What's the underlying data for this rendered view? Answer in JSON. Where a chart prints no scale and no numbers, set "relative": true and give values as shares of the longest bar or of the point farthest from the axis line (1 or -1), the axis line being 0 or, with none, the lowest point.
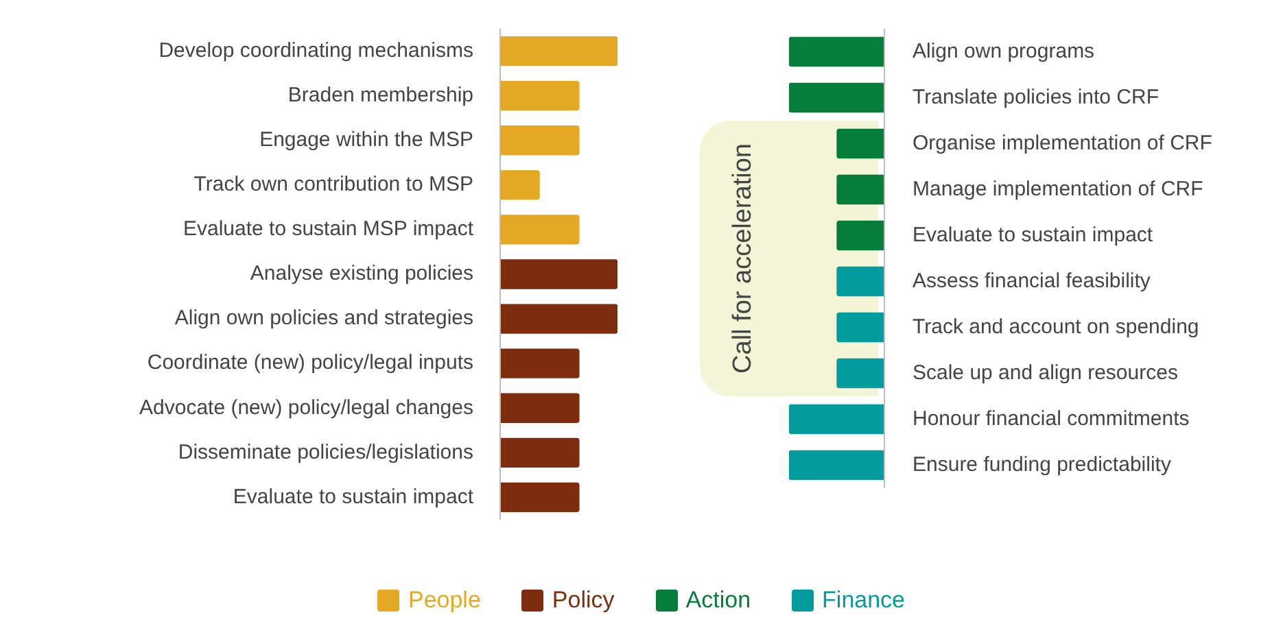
{
  "chart_data": [
    {
      "type": "bar",
      "orientation": "horizontal",
      "relative": true,
      "tick_labels": "y",
      "legend": "bottom",
      "categories": [
        "Develop coordinating mechanisms",
        "Braden membership",
        "Engage within the MSP",
        "Track own contribution to MSP",
        "Evaluate to sustain MSP impact",
        "Analyse existing policies",
        "Align own policies and strategies",
        "Coordinate (new) policy/legal inputs",
        "Advocate (new) policy/legal changes",
        "Disseminate policies/legislations",
        "Evaluate to sustain impact"
      ],
      "series": [
        {
          "name": "People",
          "color": "#e5a823",
          "values": [
            1,
            0.67,
            0.67,
            0.33,
            0.67,
            null,
            null,
            null,
            null,
            null,
            null
          ]
        },
        {
          "name": "Policy",
          "color": "#7d2d0e",
          "values": [
            null,
            null,
            null,
            null,
            null,
            1,
            1,
            0.67,
            0.67,
            0.67,
            0.67
          ]
        }
      ]
    },
    {
      "type": "bar",
      "orientation": "horizontal",
      "relative": true,
      "tick_labels": "y",
      "legend": "bottom",
      "categories": [
        "Align own programs",
        "Translate policies into CRF",
        "Organise implementation of CRF",
        "Manage implementation of CRF",
        "Evaluate to sustain impact",
        "Assess financial feasibility",
        "Track and account on spending",
        "Scale up and align resources",
        "Honour financial commitments",
        "Ensure funding predictability"
      ],
      "series": [
        {
          "name": "Action",
          "color": "#077d3c",
          "values": [
            1,
            1,
            0.5,
            0.5,
            0.5,
            null,
            null,
            null,
            null,
            null
          ]
        },
        {
          "name": "Finance",
          "color": "#039c9e",
          "values": [
            null,
            null,
            null,
            null,
            null,
            0.5,
            0.5,
            0.5,
            1,
            1
          ]
        }
      ],
      "bands": [
        {
          "axis": "y",
          "from": "Organise implementation of CRF",
          "to": "Scale up and align resources",
          "label": "Call for acceleration",
          "color": "#f3f5d6"
        }
      ]
    }
  ]
}
